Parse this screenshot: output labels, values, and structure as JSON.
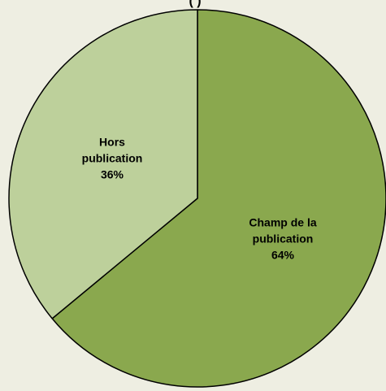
{
  "chart_data": {
    "type": "pie",
    "title_fragment": "(                  )",
    "slices": [
      {
        "name": "Champ de la publication",
        "label_lines": [
          "Champ de la",
          "publication",
          "64%"
        ],
        "value": 64,
        "color": "#8AA84E"
      },
      {
        "name": "Hors publication",
        "label_lines": [
          "Hors",
          "publication",
          "36%"
        ],
        "value": 36,
        "color": "#BDD09B"
      }
    ],
    "start_angle_deg": 0,
    "direction": "clockwise",
    "stroke_color": "#000000"
  }
}
